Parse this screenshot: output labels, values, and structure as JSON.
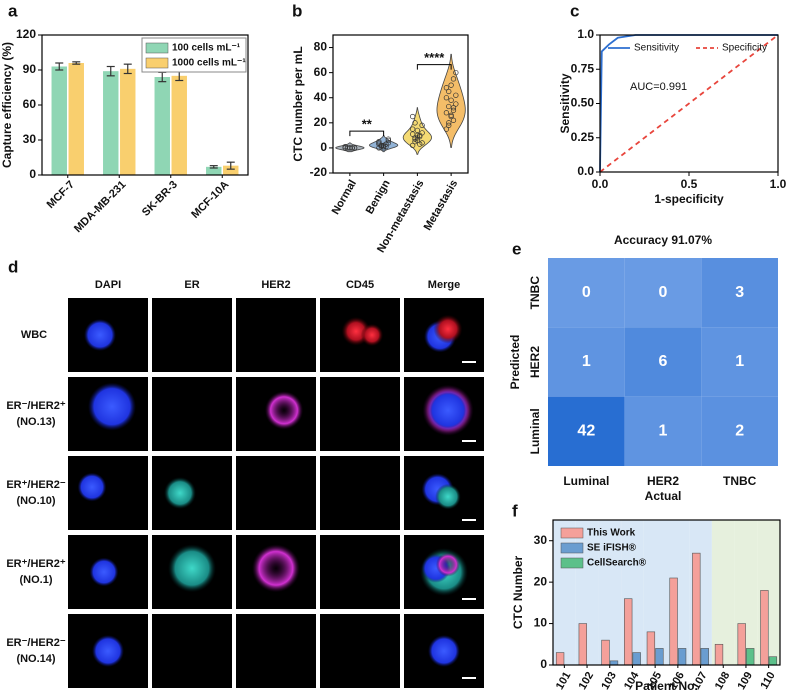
{
  "chart_data": [
    {
      "type": "bar",
      "label": "a",
      "ylabel": "Capture efficiency (%)",
      "categories": [
        "MCF-7",
        "MDA-MB-231",
        "SK-BR-3",
        "MCF-10A"
      ],
      "series": [
        {
          "name": "100 cells mL⁻¹",
          "color": "#8fd6b4",
          "values": [
            93,
            89,
            84,
            7
          ],
          "errors": [
            3,
            4,
            4,
            1
          ]
        },
        {
          "name": "1000 cells mL⁻¹",
          "color": "#f9cf6e",
          "values": [
            96,
            91,
            85,
            8
          ],
          "errors": [
            1,
            4,
            4,
            3
          ]
        }
      ],
      "ylim": [
        0,
        120
      ],
      "yticks": [
        0,
        30,
        60,
        90,
        120
      ],
      "legend": "upper right"
    },
    {
      "type": "violin",
      "label": "b",
      "ylabel": "CTC number per mL",
      "categories": [
        "Normal",
        "Benign",
        "Non-metastasis",
        "Metastasis"
      ],
      "colors": [
        "#9aa3ad",
        "#7fa6cf",
        "#f2d35a",
        "#f2b24e"
      ],
      "values": [
        [
          0,
          0,
          0,
          0,
          0,
          1,
          0,
          0,
          0,
          0
        ],
        [
          0,
          1,
          2,
          3,
          4,
          5,
          2,
          1,
          3,
          6,
          4,
          2,
          0,
          1,
          7,
          3
        ],
        [
          2,
          5,
          8,
          10,
          12,
          15,
          20,
          6,
          9,
          4,
          11,
          7,
          14,
          3,
          18,
          25,
          8,
          10
        ],
        [
          15,
          20,
          25,
          30,
          35,
          40,
          45,
          50,
          55,
          60,
          28,
          33,
          38,
          22,
          42,
          48,
          18,
          26,
          32
        ]
      ],
      "ylim": [
        -20,
        90
      ],
      "yticks": [
        -20,
        0,
        20,
        40,
        60,
        80
      ],
      "annotations": [
        "**",
        "****"
      ]
    },
    {
      "type": "line",
      "label": "c",
      "xlabel": "1-specificity",
      "ylabel": "Sensitivity",
      "series": [
        {
          "name": "Sensitivity",
          "color": "#2d6fd0",
          "x": [
            0,
            0.01,
            0.05,
            0.1,
            0.2,
            1
          ],
          "values": [
            0,
            0.88,
            0.93,
            0.98,
            1,
            1
          ]
        },
        {
          "name": "Specificity",
          "color": "#e8453c",
          "dash": true,
          "x": [
            0,
            1
          ],
          "values": [
            0,
            1
          ]
        }
      ],
      "xlim": [
        0,
        1
      ],
      "ylim": [
        0,
        1
      ],
      "xticks": [
        {
          "value": 0,
          "label": "0.0"
        },
        0.5,
        {
          "value": 1,
          "label": "1.0"
        }
      ],
      "yticks": [
        {
          "value": 0,
          "label": "0.0"
        },
        0.25,
        {
          "value": 0.5,
          "label": "0.50"
        },
        0.75,
        {
          "value": 1,
          "label": "1.0"
        }
      ],
      "annotations": [
        "AUC=0.991"
      ]
    },
    {
      "type": "heatmap",
      "label": "e",
      "title": "Accuracy 91.07%",
      "xlabel": "Actual",
      "ylabel": "Predicted",
      "x_categories": [
        "Luminal",
        "HER2",
        "TNBC"
      ],
      "y_categories": [
        "TNBC",
        "HER2",
        "Luminal"
      ],
      "values": [
        [
          0,
          0,
          3
        ],
        [
          1,
          6,
          1
        ],
        [
          42,
          1,
          2
        ]
      ]
    },
    {
      "type": "bar",
      "label": "f",
      "ylabel": "CTC Number",
      "xlabel": "Patient No.",
      "categories": [
        "101",
        "102",
        "103",
        "104",
        "105",
        "106",
        "107",
        "108",
        "109",
        "110"
      ],
      "series": [
        {
          "name": "This Work",
          "color": "#f4a09a",
          "values": [
            3,
            10,
            6,
            16,
            8,
            21,
            27,
            5,
            10,
            18
          ]
        },
        {
          "name": "SE iFISH®",
          "color": "#6a9dd0",
          "values": [
            0,
            0,
            1,
            3,
            4,
            4,
            4,
            null,
            null,
            null
          ]
        },
        {
          "name": "CellSearch®",
          "color": "#5cc08a",
          "values": [
            null,
            null,
            null,
            null,
            null,
            null,
            null,
            0,
            4,
            2
          ]
        }
      ],
      "ylim": [
        0,
        35
      ],
      "yticks": [
        0,
        10,
        20,
        30
      ],
      "legend": "upper left"
    }
  ],
  "image_grid": {
    "label": "d",
    "columns": [
      "DAPI",
      "ER",
      "HER2",
      "CD45",
      "Merge"
    ],
    "rows": [
      {
        "label": "WBC"
      },
      {
        "label": "ER⁻/HER2⁺",
        "sample": "(NO.13)"
      },
      {
        "label": "ER⁺/HER2⁻",
        "sample": "(NO.10)"
      },
      {
        "label": "ER⁺/HER2⁺",
        "sample": "(NO.1)"
      },
      {
        "label": "ER⁻/HER2⁻",
        "sample": "(NO.14)"
      }
    ]
  }
}
